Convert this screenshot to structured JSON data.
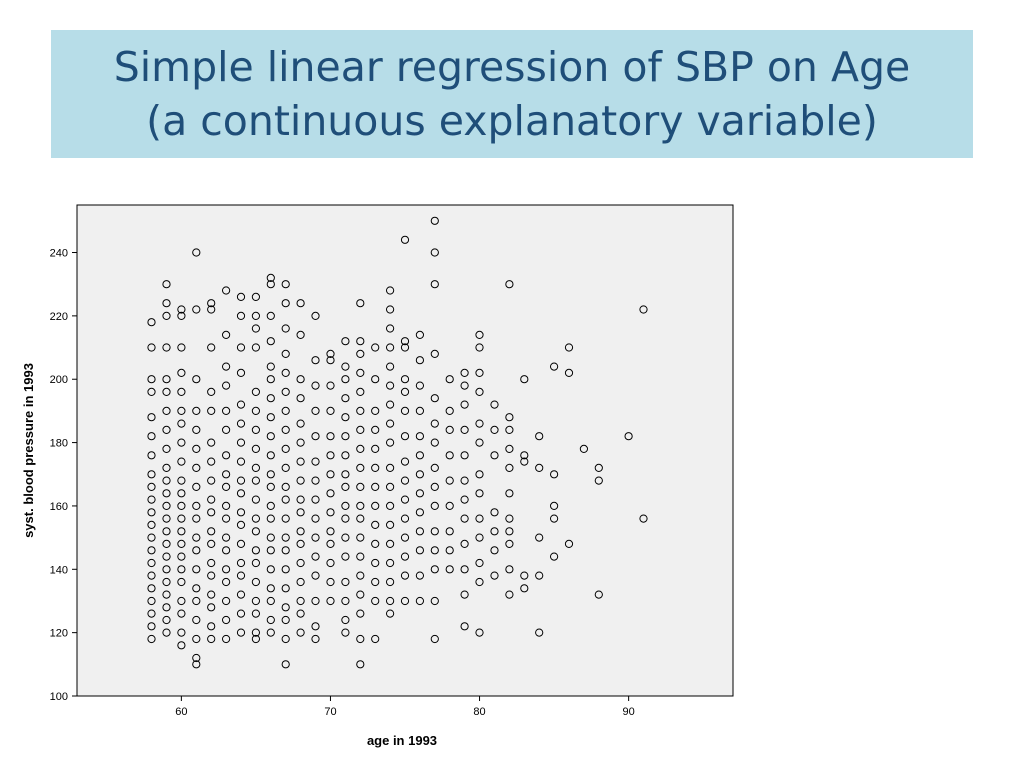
{
  "slide": {
    "title_line1": "Simple linear regression of SBP on Age",
    "title_line2": "(a continuous explanatory variable)"
  },
  "colors": {
    "title_bg": "#b7dde8",
    "title_text": "#1f4e79",
    "plot_bg": "#f0f0f0",
    "marker_stroke": "#000000"
  },
  "chart_data": {
    "type": "scatter",
    "xlabel": "age in 1993",
    "ylabel": "syst. blood pressure in 1993",
    "xlim": [
      53,
      97
    ],
    "ylim": [
      100,
      255
    ],
    "xticks": [
      60,
      70,
      80,
      90
    ],
    "yticks": [
      100,
      120,
      140,
      160,
      180,
      200,
      220,
      240
    ],
    "grid": false,
    "legend": "none",
    "marker": "open-circle",
    "points": [
      [
        58,
        118
      ],
      [
        58,
        122
      ],
      [
        58,
        126
      ],
      [
        58,
        130
      ],
      [
        58,
        134
      ],
      [
        58,
        138
      ],
      [
        58,
        142
      ],
      [
        58,
        146
      ],
      [
        58,
        150
      ],
      [
        58,
        154
      ],
      [
        58,
        158
      ],
      [
        58,
        162
      ],
      [
        58,
        166
      ],
      [
        58,
        170
      ],
      [
        58,
        176
      ],
      [
        58,
        182
      ],
      [
        58,
        188
      ],
      [
        58,
        196
      ],
      [
        58,
        200
      ],
      [
        58,
        210
      ],
      [
        58,
        218
      ],
      [
        59,
        120
      ],
      [
        59,
        124
      ],
      [
        59,
        128
      ],
      [
        59,
        132
      ],
      [
        59,
        136
      ],
      [
        59,
        140
      ],
      [
        59,
        144
      ],
      [
        59,
        148
      ],
      [
        59,
        152
      ],
      [
        59,
        156
      ],
      [
        59,
        160
      ],
      [
        59,
        164
      ],
      [
        59,
        168
      ],
      [
        59,
        172
      ],
      [
        59,
        178
      ],
      [
        59,
        184
      ],
      [
        59,
        190
      ],
      [
        59,
        196
      ],
      [
        59,
        200
      ],
      [
        59,
        210
      ],
      [
        59,
        220
      ],
      [
        59,
        224
      ],
      [
        59,
        230
      ],
      [
        60,
        116
      ],
      [
        60,
        120
      ],
      [
        60,
        126
      ],
      [
        60,
        130
      ],
      [
        60,
        136
      ],
      [
        60,
        140
      ],
      [
        60,
        144
      ],
      [
        60,
        148
      ],
      [
        60,
        152
      ],
      [
        60,
        156
      ],
      [
        60,
        160
      ],
      [
        60,
        164
      ],
      [
        60,
        168
      ],
      [
        60,
        174
      ],
      [
        60,
        180
      ],
      [
        60,
        186
      ],
      [
        60,
        190
      ],
      [
        60,
        196
      ],
      [
        60,
        202
      ],
      [
        60,
        210
      ],
      [
        60,
        220
      ],
      [
        60,
        222
      ],
      [
        61,
        110
      ],
      [
        61,
        112
      ],
      [
        61,
        118
      ],
      [
        61,
        124
      ],
      [
        61,
        130
      ],
      [
        61,
        134
      ],
      [
        61,
        140
      ],
      [
        61,
        146
      ],
      [
        61,
        150
      ],
      [
        61,
        156
      ],
      [
        61,
        160
      ],
      [
        61,
        166
      ],
      [
        61,
        172
      ],
      [
        61,
        178
      ],
      [
        61,
        184
      ],
      [
        61,
        190
      ],
      [
        61,
        200
      ],
      [
        61,
        222
      ],
      [
        61,
        240
      ],
      [
        62,
        118
      ],
      [
        62,
        122
      ],
      [
        62,
        128
      ],
      [
        62,
        132
      ],
      [
        62,
        138
      ],
      [
        62,
        142
      ],
      [
        62,
        148
      ],
      [
        62,
        152
      ],
      [
        62,
        158
      ],
      [
        62,
        162
      ],
      [
        62,
        168
      ],
      [
        62,
        174
      ],
      [
        62,
        180
      ],
      [
        62,
        190
      ],
      [
        62,
        196
      ],
      [
        62,
        210
      ],
      [
        62,
        222
      ],
      [
        62,
        224
      ],
      [
        63,
        118
      ],
      [
        63,
        124
      ],
      [
        63,
        130
      ],
      [
        63,
        136
      ],
      [
        63,
        140
      ],
      [
        63,
        146
      ],
      [
        63,
        150
      ],
      [
        63,
        156
      ],
      [
        63,
        160
      ],
      [
        63,
        166
      ],
      [
        63,
        170
      ],
      [
        63,
        176
      ],
      [
        63,
        184
      ],
      [
        63,
        190
      ],
      [
        63,
        198
      ],
      [
        63,
        204
      ],
      [
        63,
        214
      ],
      [
        63,
        228
      ],
      [
        64,
        120
      ],
      [
        64,
        126
      ],
      [
        64,
        132
      ],
      [
        64,
        138
      ],
      [
        64,
        142
      ],
      [
        64,
        148
      ],
      [
        64,
        154
      ],
      [
        64,
        158
      ],
      [
        64,
        164
      ],
      [
        64,
        168
      ],
      [
        64,
        174
      ],
      [
        64,
        180
      ],
      [
        64,
        186
      ],
      [
        64,
        192
      ],
      [
        64,
        202
      ],
      [
        64,
        210
      ],
      [
        64,
        220
      ],
      [
        64,
        226
      ],
      [
        65,
        118
      ],
      [
        65,
        120
      ],
      [
        65,
        126
      ],
      [
        65,
        130
      ],
      [
        65,
        136
      ],
      [
        65,
        142
      ],
      [
        65,
        146
      ],
      [
        65,
        152
      ],
      [
        65,
        156
      ],
      [
        65,
        162
      ],
      [
        65,
        168
      ],
      [
        65,
        172
      ],
      [
        65,
        178
      ],
      [
        65,
        184
      ],
      [
        65,
        190
      ],
      [
        65,
        196
      ],
      [
        65,
        210
      ],
      [
        65,
        216
      ],
      [
        65,
        220
      ],
      [
        65,
        226
      ],
      [
        66,
        120
      ],
      [
        66,
        124
      ],
      [
        66,
        130
      ],
      [
        66,
        134
      ],
      [
        66,
        140
      ],
      [
        66,
        146
      ],
      [
        66,
        150
      ],
      [
        66,
        156
      ],
      [
        66,
        160
      ],
      [
        66,
        166
      ],
      [
        66,
        170
      ],
      [
        66,
        176
      ],
      [
        66,
        182
      ],
      [
        66,
        188
      ],
      [
        66,
        194
      ],
      [
        66,
        200
      ],
      [
        66,
        204
      ],
      [
        66,
        212
      ],
      [
        66,
        220
      ],
      [
        66,
        230
      ],
      [
        66,
        232
      ],
      [
        67,
        110
      ],
      [
        67,
        118
      ],
      [
        67,
        124
      ],
      [
        67,
        128
      ],
      [
        67,
        134
      ],
      [
        67,
        140
      ],
      [
        67,
        146
      ],
      [
        67,
        150
      ],
      [
        67,
        156
      ],
      [
        67,
        162
      ],
      [
        67,
        166
      ],
      [
        67,
        172
      ],
      [
        67,
        178
      ],
      [
        67,
        184
      ],
      [
        67,
        190
      ],
      [
        67,
        196
      ],
      [
        67,
        202
      ],
      [
        67,
        208
      ],
      [
        67,
        216
      ],
      [
        67,
        224
      ],
      [
        67,
        230
      ],
      [
        68,
        120
      ],
      [
        68,
        126
      ],
      [
        68,
        130
      ],
      [
        68,
        136
      ],
      [
        68,
        142
      ],
      [
        68,
        148
      ],
      [
        68,
        152
      ],
      [
        68,
        158
      ],
      [
        68,
        162
      ],
      [
        68,
        168
      ],
      [
        68,
        174
      ],
      [
        68,
        180
      ],
      [
        68,
        186
      ],
      [
        68,
        194
      ],
      [
        68,
        200
      ],
      [
        68,
        214
      ],
      [
        68,
        224
      ],
      [
        69,
        118
      ],
      [
        69,
        122
      ],
      [
        69,
        130
      ],
      [
        69,
        138
      ],
      [
        69,
        144
      ],
      [
        69,
        150
      ],
      [
        69,
        156
      ],
      [
        69,
        162
      ],
      [
        69,
        168
      ],
      [
        69,
        174
      ],
      [
        69,
        182
      ],
      [
        69,
        190
      ],
      [
        69,
        198
      ],
      [
        69,
        206
      ],
      [
        69,
        220
      ],
      [
        70,
        130
      ],
      [
        70,
        136
      ],
      [
        70,
        142
      ],
      [
        70,
        148
      ],
      [
        70,
        152
      ],
      [
        70,
        158
      ],
      [
        70,
        164
      ],
      [
        70,
        170
      ],
      [
        70,
        176
      ],
      [
        70,
        182
      ],
      [
        70,
        190
      ],
      [
        70,
        198
      ],
      [
        70,
        206
      ],
      [
        70,
        208
      ],
      [
        71,
        120
      ],
      [
        71,
        124
      ],
      [
        71,
        130
      ],
      [
        71,
        136
      ],
      [
        71,
        144
      ],
      [
        71,
        150
      ],
      [
        71,
        156
      ],
      [
        71,
        160
      ],
      [
        71,
        166
      ],
      [
        71,
        170
      ],
      [
        71,
        176
      ],
      [
        71,
        182
      ],
      [
        71,
        188
      ],
      [
        71,
        194
      ],
      [
        71,
        200
      ],
      [
        71,
        204
      ],
      [
        71,
        212
      ],
      [
        72,
        110
      ],
      [
        72,
        118
      ],
      [
        72,
        126
      ],
      [
        72,
        132
      ],
      [
        72,
        138
      ],
      [
        72,
        144
      ],
      [
        72,
        150
      ],
      [
        72,
        156
      ],
      [
        72,
        160
      ],
      [
        72,
        166
      ],
      [
        72,
        172
      ],
      [
        72,
        178
      ],
      [
        72,
        184
      ],
      [
        72,
        190
      ],
      [
        72,
        196
      ],
      [
        72,
        202
      ],
      [
        72,
        208
      ],
      [
        72,
        212
      ],
      [
        72,
        224
      ],
      [
        73,
        118
      ],
      [
        73,
        130
      ],
      [
        73,
        136
      ],
      [
        73,
        142
      ],
      [
        73,
        148
      ],
      [
        73,
        154
      ],
      [
        73,
        160
      ],
      [
        73,
        166
      ],
      [
        73,
        172
      ],
      [
        73,
        178
      ],
      [
        73,
        184
      ],
      [
        73,
        190
      ],
      [
        73,
        200
      ],
      [
        73,
        210
      ],
      [
        74,
        126
      ],
      [
        74,
        130
      ],
      [
        74,
        136
      ],
      [
        74,
        142
      ],
      [
        74,
        148
      ],
      [
        74,
        154
      ],
      [
        74,
        160
      ],
      [
        74,
        166
      ],
      [
        74,
        172
      ],
      [
        74,
        180
      ],
      [
        74,
        186
      ],
      [
        74,
        192
      ],
      [
        74,
        198
      ],
      [
        74,
        204
      ],
      [
        74,
        210
      ],
      [
        74,
        216
      ],
      [
        74,
        222
      ],
      [
        74,
        228
      ],
      [
        75,
        130
      ],
      [
        75,
        138
      ],
      [
        75,
        144
      ],
      [
        75,
        150
      ],
      [
        75,
        156
      ],
      [
        75,
        162
      ],
      [
        75,
        168
      ],
      [
        75,
        174
      ],
      [
        75,
        182
      ],
      [
        75,
        190
      ],
      [
        75,
        196
      ],
      [
        75,
        200
      ],
      [
        75,
        210
      ],
      [
        75,
        212
      ],
      [
        75,
        244
      ],
      [
        76,
        130
      ],
      [
        76,
        138
      ],
      [
        76,
        146
      ],
      [
        76,
        152
      ],
      [
        76,
        158
      ],
      [
        76,
        164
      ],
      [
        76,
        170
      ],
      [
        76,
        176
      ],
      [
        76,
        182
      ],
      [
        76,
        190
      ],
      [
        76,
        198
      ],
      [
        76,
        206
      ],
      [
        76,
        214
      ],
      [
        77,
        118
      ],
      [
        77,
        130
      ],
      [
        77,
        140
      ],
      [
        77,
        146
      ],
      [
        77,
        152
      ],
      [
        77,
        160
      ],
      [
        77,
        166
      ],
      [
        77,
        172
      ],
      [
        77,
        180
      ],
      [
        77,
        186
      ],
      [
        77,
        194
      ],
      [
        77,
        208
      ],
      [
        77,
        230
      ],
      [
        77,
        240
      ],
      [
        77,
        250
      ],
      [
        78,
        140
      ],
      [
        78,
        146
      ],
      [
        78,
        152
      ],
      [
        78,
        160
      ],
      [
        78,
        168
      ],
      [
        78,
        176
      ],
      [
        78,
        184
      ],
      [
        78,
        190
      ],
      [
        78,
        200
      ],
      [
        79,
        122
      ],
      [
        79,
        132
      ],
      [
        79,
        140
      ],
      [
        79,
        148
      ],
      [
        79,
        156
      ],
      [
        79,
        162
      ],
      [
        79,
        168
      ],
      [
        79,
        176
      ],
      [
        79,
        184
      ],
      [
        79,
        192
      ],
      [
        79,
        198
      ],
      [
        79,
        202
      ],
      [
        80,
        120
      ],
      [
        80,
        136
      ],
      [
        80,
        142
      ],
      [
        80,
        150
      ],
      [
        80,
        156
      ],
      [
        80,
        164
      ],
      [
        80,
        170
      ],
      [
        80,
        180
      ],
      [
        80,
        186
      ],
      [
        80,
        196
      ],
      [
        80,
        202
      ],
      [
        80,
        210
      ],
      [
        80,
        214
      ],
      [
        81,
        138
      ],
      [
        81,
        146
      ],
      [
        81,
        152
      ],
      [
        81,
        158
      ],
      [
        81,
        176
      ],
      [
        81,
        184
      ],
      [
        81,
        192
      ],
      [
        82,
        132
      ],
      [
        82,
        140
      ],
      [
        82,
        148
      ],
      [
        82,
        152
      ],
      [
        82,
        156
      ],
      [
        82,
        164
      ],
      [
        82,
        172
      ],
      [
        82,
        178
      ],
      [
        82,
        184
      ],
      [
        82,
        188
      ],
      [
        82,
        230
      ],
      [
        83,
        134
      ],
      [
        83,
        138
      ],
      [
        83,
        174
      ],
      [
        83,
        176
      ],
      [
        83,
        200
      ],
      [
        84,
        120
      ],
      [
        84,
        138
      ],
      [
        84,
        150
      ],
      [
        84,
        172
      ],
      [
        84,
        182
      ],
      [
        85,
        144
      ],
      [
        85,
        156
      ],
      [
        85,
        160
      ],
      [
        85,
        170
      ],
      [
        85,
        204
      ],
      [
        86,
        148
      ],
      [
        86,
        202
      ],
      [
        86,
        210
      ],
      [
        87,
        178
      ],
      [
        88,
        132
      ],
      [
        88,
        168
      ],
      [
        88,
        172
      ],
      [
        90,
        182
      ],
      [
        91,
        156
      ],
      [
        91,
        222
      ]
    ]
  }
}
